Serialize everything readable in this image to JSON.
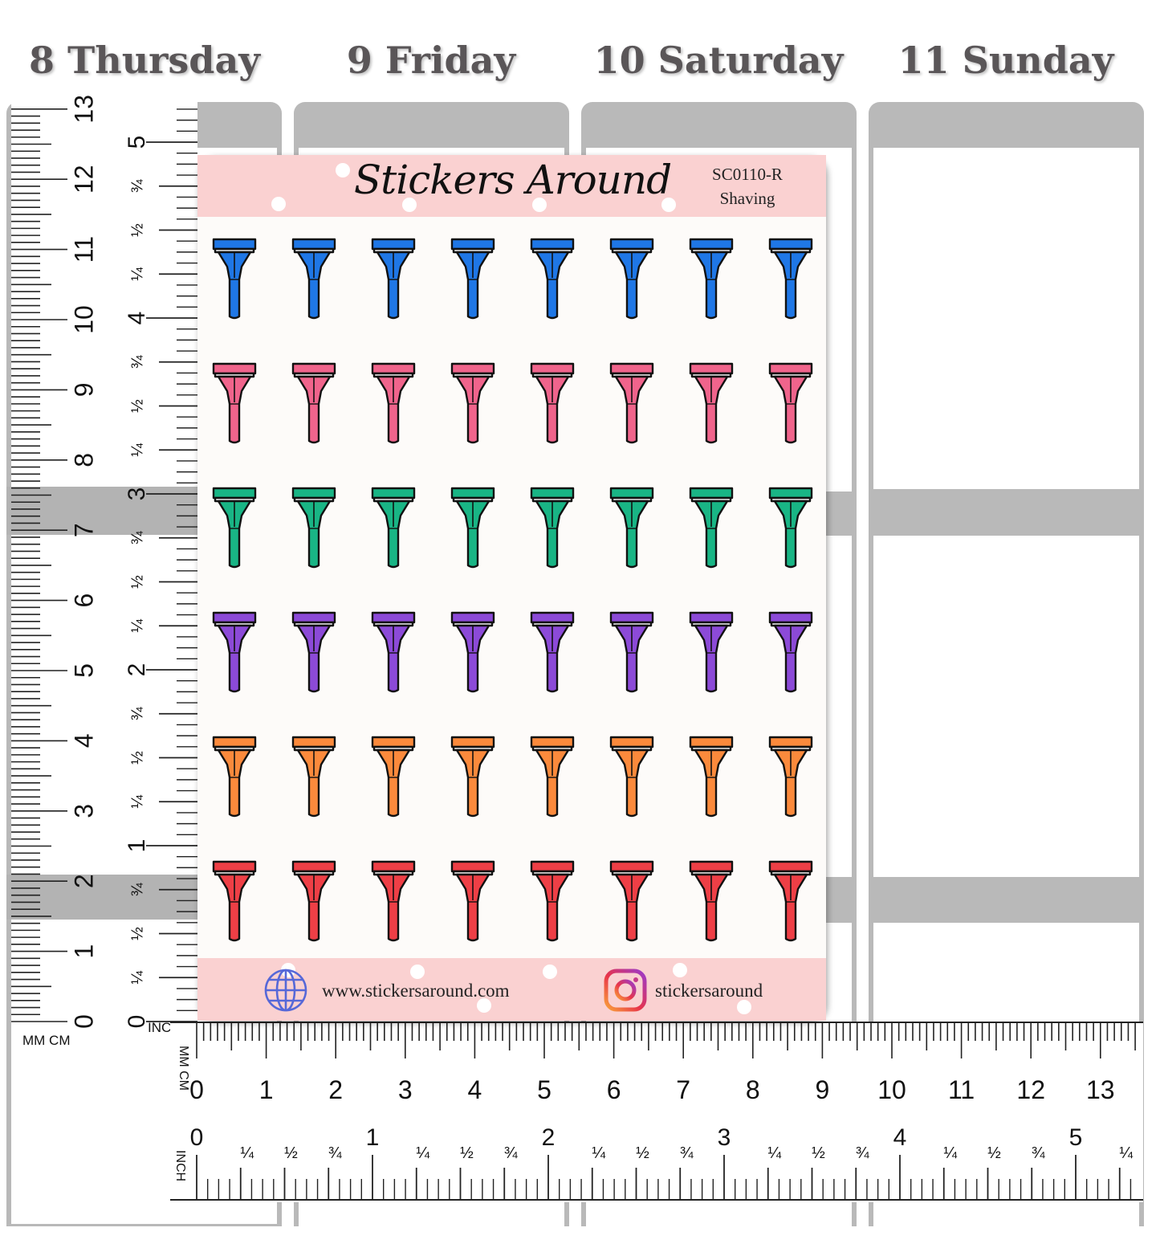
{
  "days": [
    {
      "label": "8 Thursday"
    },
    {
      "label": "9 Friday"
    },
    {
      "label": "10 Saturday"
    },
    {
      "label": "11 Sunday"
    }
  ],
  "sheet": {
    "brand": "Stickers Around",
    "code": "SC0110-R",
    "subject": "Shaving",
    "website": "www.stickersaround.com",
    "instagram": "stickersaround",
    "rows": 6,
    "columns": 8,
    "colors": [
      "#1f77e6",
      "#f0648c",
      "#19b585",
      "#8c4ad8",
      "#fb8a3c",
      "#ee3f46"
    ],
    "icon": "razor-icon"
  },
  "ruler_vertical": {
    "units_label": "MM CM",
    "inch_label": "INCH",
    "cm": [
      "0",
      "1",
      "2",
      "3",
      "4",
      "5",
      "6",
      "7",
      "8",
      "9",
      "10",
      "11",
      "12",
      "13"
    ],
    "inch": [
      "0",
      "1",
      "2",
      "3",
      "4",
      "5"
    ],
    "fractions": [
      "¼",
      "½",
      "¾"
    ]
  },
  "ruler_horizontal": {
    "units_label": "MM CM",
    "inch_label": "INCH",
    "cm": [
      "0",
      "1",
      "2",
      "3",
      "4",
      "5",
      "6",
      "7",
      "8",
      "9",
      "10",
      "11",
      "12",
      "13"
    ],
    "inch": [
      "0",
      "1",
      "2",
      "3",
      "4",
      "5"
    ],
    "fractions": [
      "¼",
      "½",
      "¾"
    ]
  }
}
